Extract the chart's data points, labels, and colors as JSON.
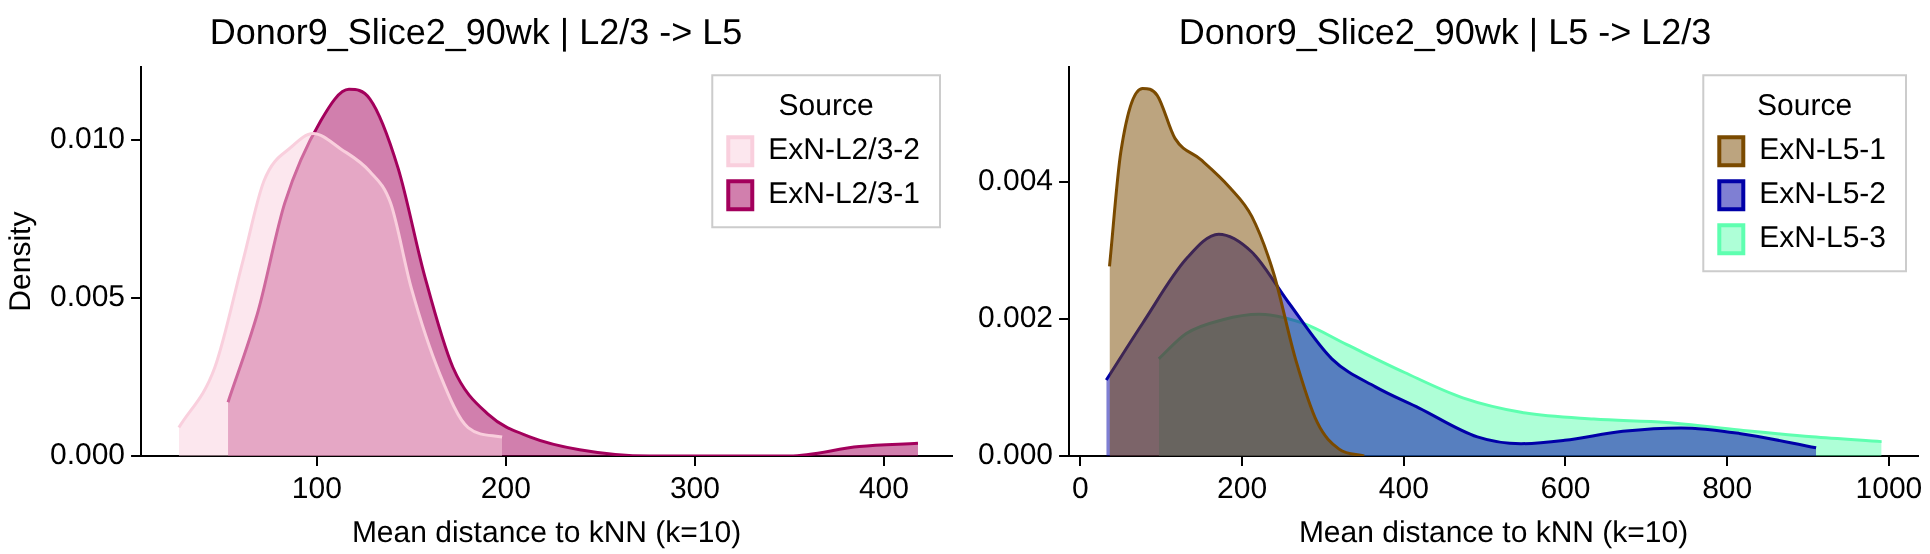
{
  "chart_data": [
    {
      "type": "area",
      "title": "Donor9_Slice2_90wk | L2/3 -> L5",
      "xlabel": "Mean distance to kNN (k=10)",
      "ylabel": "Density",
      "legend_title": "Source",
      "legend": "top right",
      "grid": false,
      "xlim": [
        7,
        436
      ],
      "xticks": [
        100,
        200,
        300,
        400
      ],
      "ylim": [
        0,
        0.0123
      ],
      "yticks": [
        {
          "value": 0,
          "label": "0.000"
        },
        {
          "value": 0.005,
          "label": "0.005"
        },
        {
          "value": 0.01,
          "label": "0.010"
        }
      ],
      "series": [
        {
          "name": "ExN-L2/3-2",
          "color": "#f9cfdd",
          "x": [
            27,
            46,
            61,
            72,
            87,
            98,
            113,
            128,
            139,
            150,
            165,
            180,
            198
          ],
          "values": [
            0.0009,
            0.0028,
            0.0062,
            0.0087,
            0.0098,
            0.0102,
            0.0097,
            0.009,
            0.008,
            0.0053,
            0.0026,
            0.0009,
            0.0006
          ]
        },
        {
          "name": "ExN-L2/3-1",
          "color": "#a3005c",
          "x": [
            53,
            69,
            83,
            102,
            117,
            128,
            143,
            157,
            172,
            191,
            213,
            239,
            276,
            350,
            387,
            418
          ],
          "values": [
            0.0017,
            0.0046,
            0.008,
            0.0106,
            0.0116,
            0.0113,
            0.0091,
            0.0057,
            0.0028,
            0.0013,
            0.0006,
            0.0002,
            0,
            0,
            0.0003,
            0.0004
          ]
        }
      ]
    },
    {
      "type": "area",
      "title": "Donor9_Slice2_90wk | L5 -> L2/3",
      "xlabel": "Mean distance to kNN (k=10)",
      "legend_title": "Source",
      "legend": "top right",
      "grid": false,
      "xlim": [
        -14,
        1036
      ],
      "xticks": [
        0,
        200,
        400,
        600,
        800,
        1000
      ],
      "ylim": [
        0,
        0.00568
      ],
      "yticks": [
        {
          "value": 0,
          "label": "0.000"
        },
        {
          "value": 0.002,
          "label": "0.002"
        },
        {
          "value": 0.004,
          "label": "0.004"
        }
      ],
      "series": [
        {
          "name": "ExN-L5-1",
          "color": "#7a4a00",
          "x": [
            36,
            50,
            77,
            95,
            117,
            149,
            185,
            212,
            239,
            266,
            293,
            320,
            351
          ],
          "values": [
            0.00277,
            0.00444,
            0.00537,
            0.00527,
            0.00464,
            0.00433,
            0.00392,
            0.0035,
            0.00267,
            0.00142,
            0.00049,
            0.0001,
            0
          ]
        },
        {
          "name": "ExN-L5-2",
          "color": "#0000a8",
          "x": [
            32,
            77,
            131,
            171,
            212,
            257,
            311,
            365,
            419,
            491,
            545,
            599,
            671,
            743,
            815,
            910
          ],
          "values": [
            0.00111,
            0.00194,
            0.00288,
            0.00324,
            0.00298,
            0.00225,
            0.00142,
            0.00101,
            0.0007,
            0.00028,
            0.00018,
            0.00023,
            0.00036,
            0.00041,
            0.00033,
            0.00012
          ]
        },
        {
          "name": "ExN-L5-3",
          "color": "#5effb0",
          "x": [
            97,
            131,
            176,
            221,
            275,
            329,
            401,
            473,
            545,
            635,
            725,
            815,
            905,
            991
          ],
          "values": [
            0.00142,
            0.00179,
            0.00199,
            0.00207,
            0.00194,
            0.00163,
            0.00122,
            0.00085,
            0.00064,
            0.00054,
            0.00049,
            0.00038,
            0.00028,
            0.00021
          ]
        }
      ]
    }
  ]
}
